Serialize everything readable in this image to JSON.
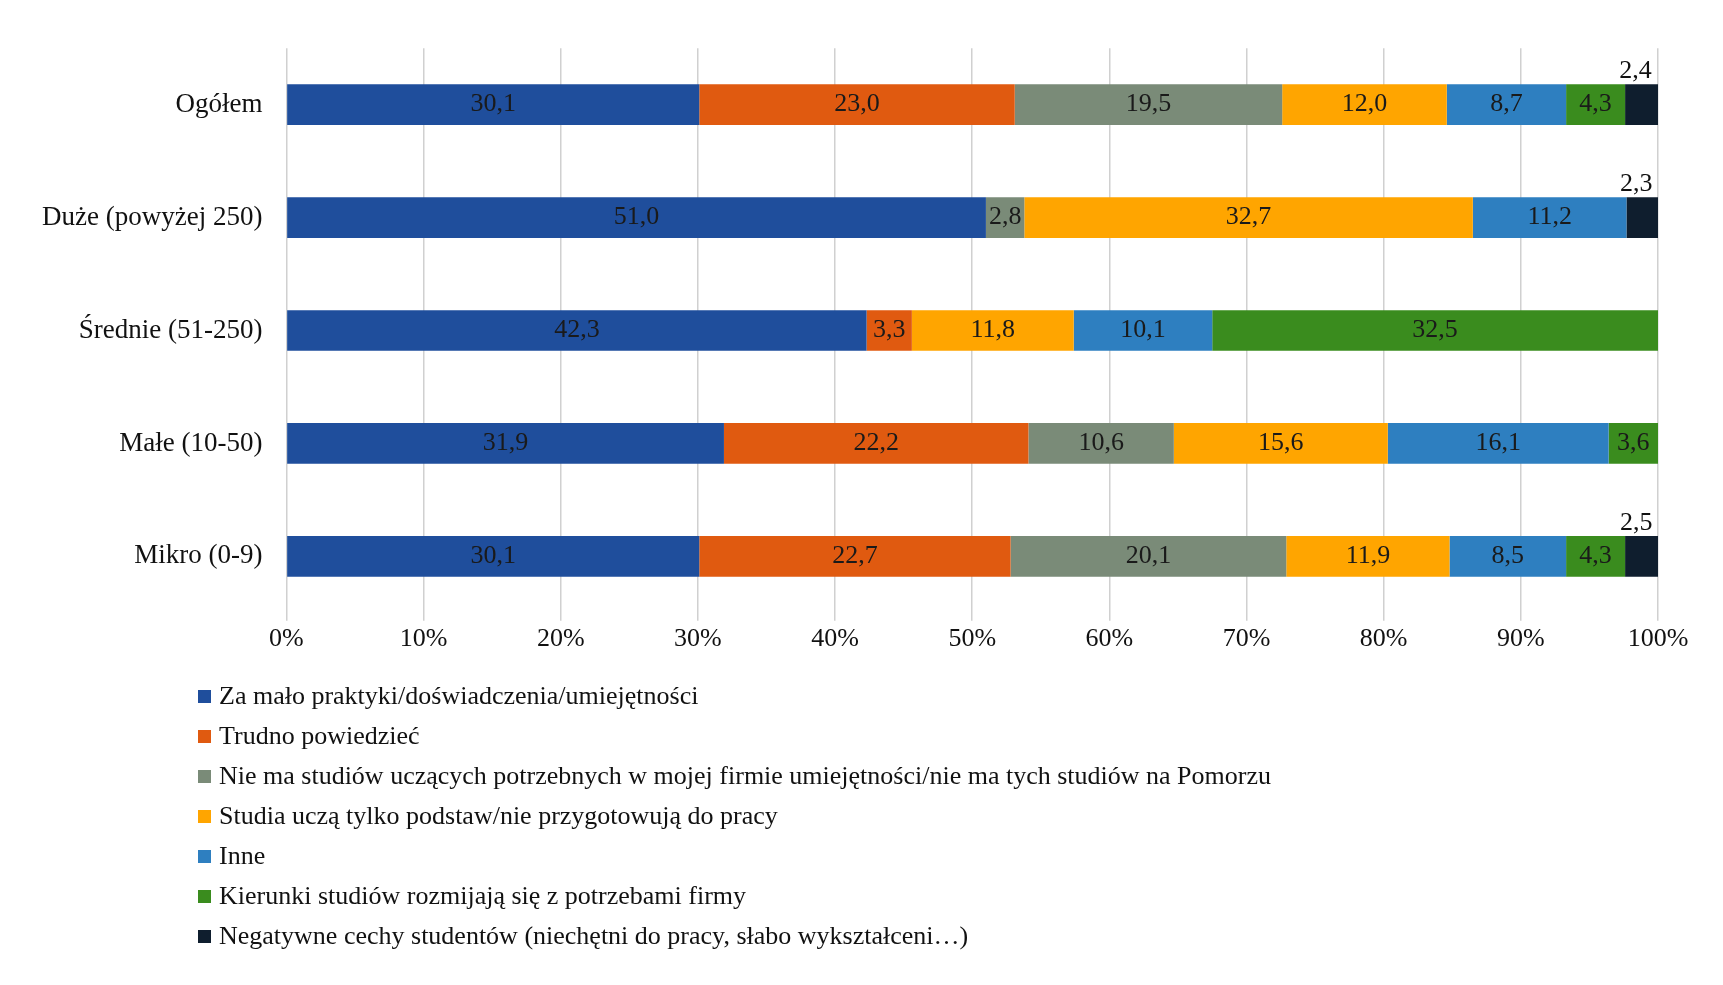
{
  "chart_data": {
    "type": "bar",
    "orientation": "horizontal",
    "stacked": true,
    "grid": "x",
    "legend": "bottom",
    "categories": [
      "Ogółem",
      "Duże (powyżej 250)",
      "Średnie (51-250)",
      "Małe (10-50)",
      "Mikro (0-9)"
    ],
    "xlim": [
      0,
      100
    ],
    "xticks": [
      {
        "value": 0,
        "label": "0%"
      },
      {
        "value": 10,
        "label": "10%"
      },
      {
        "value": 20,
        "label": "20%"
      },
      {
        "value": 30,
        "label": "30%"
      },
      {
        "value": 40,
        "label": "40%"
      },
      {
        "value": 50,
        "label": "50%"
      },
      {
        "value": 60,
        "label": "60%"
      },
      {
        "value": 70,
        "label": "70%"
      },
      {
        "value": 80,
        "label": "80%"
      },
      {
        "value": 90,
        "label": "90%"
      },
      {
        "value": 100,
        "label": "100%"
      }
    ],
    "series": [
      {
        "name": "Za mało praktyki/doświadczenia/umiejętności",
        "color": "#1f4e9c",
        "values": [
          30.1,
          51.0,
          42.3,
          31.9,
          30.1
        ],
        "value_labels": [
          "30,1",
          "51,0",
          "42,3",
          "31,9",
          "30,1"
        ]
      },
      {
        "name": "Trudno powiedzieć",
        "color": "#e05a10",
        "values": [
          23.0,
          null,
          3.3,
          22.2,
          22.7
        ],
        "value_labels": [
          "23,0",
          null,
          "3,3",
          "22,2",
          "22,7"
        ]
      },
      {
        "name": "Nie ma studiów uczących potrzebnych w mojej firmie umiejętności/nie ma tych studiów na Pomorzu",
        "color": "#7a8b78",
        "values": [
          19.5,
          2.8,
          null,
          10.6,
          20.1
        ],
        "value_labels": [
          "19,5",
          "2,8",
          null,
          "10,6",
          "20,1"
        ]
      },
      {
        "name": "Studia uczą tylko podstaw/nie przygotowują do pracy",
        "color": "#ffa500",
        "values": [
          12.0,
          32.7,
          11.8,
          15.6,
          11.9
        ],
        "value_labels": [
          "12,0",
          "32,7",
          "11,8",
          "15,6",
          "11,9"
        ]
      },
      {
        "name": "Inne",
        "color": "#2e7fc0",
        "values": [
          8.7,
          11.2,
          10.1,
          16.1,
          8.5
        ],
        "value_labels": [
          "8,7",
          "11,2",
          "10,1",
          "16,1",
          "8,5"
        ]
      },
      {
        "name": "Kierunki studiów rozmijają się z potrzebami firmy",
        "color": "#3a8c1e",
        "values": [
          4.3,
          null,
          32.5,
          3.6,
          4.3
        ],
        "value_labels": [
          "4,3",
          null,
          "32,5",
          "3,6",
          "4,3"
        ]
      },
      {
        "name": "Negatywne cechy studentów (niechętni do pracy, słabo wykształceni…)",
        "color": "#0f1e2e",
        "values": [
          2.4,
          2.3,
          null,
          null,
          2.5
        ],
        "value_labels": [
          "2,4",
          "2,3",
          null,
          null,
          "2,5"
        ]
      }
    ]
  }
}
